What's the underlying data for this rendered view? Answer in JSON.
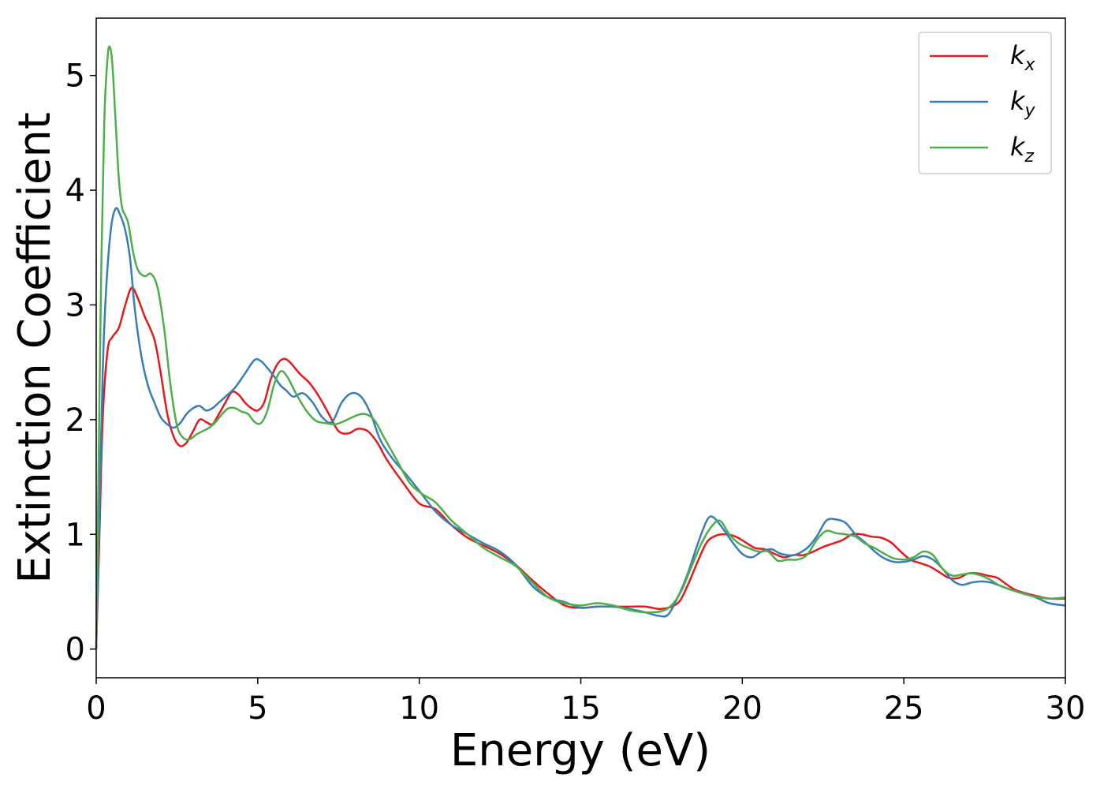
{
  "chart_data": {
    "type": "line",
    "title": "",
    "xlabel": "Energy (eV)",
    "ylabel": "Extinction Coefficient",
    "xlim": [
      0,
      30
    ],
    "ylim": [
      -0.25,
      5.5
    ],
    "xticks": [
      0,
      5,
      10,
      15,
      20,
      25,
      30
    ],
    "xtick_labels": [
      "0",
      "5",
      "10",
      "15",
      "20",
      "25",
      "30"
    ],
    "yticks": [
      0,
      1,
      2,
      3,
      4,
      5
    ],
    "ytick_labels": [
      "0",
      "1",
      "2",
      "3",
      "4",
      "5"
    ],
    "grid": false,
    "legend_position": "top-right",
    "series": [
      {
        "name": "k_x",
        "name_main": "k",
        "name_sub": "x",
        "color": "#e41a1c",
        "points": [
          [
            0,
            0
          ],
          [
            0.1,
            1.0
          ],
          [
            0.2,
            2.0
          ],
          [
            0.35,
            2.6
          ],
          [
            0.5,
            2.72
          ],
          [
            0.7,
            2.8
          ],
          [
            0.9,
            3.0
          ],
          [
            1.1,
            3.15
          ],
          [
            1.3,
            3.05
          ],
          [
            1.5,
            2.9
          ],
          [
            1.8,
            2.7
          ],
          [
            2.0,
            2.4
          ],
          [
            2.2,
            2.05
          ],
          [
            2.4,
            1.85
          ],
          [
            2.6,
            1.77
          ],
          [
            2.8,
            1.8
          ],
          [
            3.0,
            1.9
          ],
          [
            3.2,
            2.0
          ],
          [
            3.4,
            1.98
          ],
          [
            3.6,
            1.96
          ],
          [
            3.8,
            2.05
          ],
          [
            4.0,
            2.15
          ],
          [
            4.2,
            2.24
          ],
          [
            4.4,
            2.22
          ],
          [
            4.6,
            2.15
          ],
          [
            4.8,
            2.1
          ],
          [
            5.0,
            2.08
          ],
          [
            5.2,
            2.15
          ],
          [
            5.4,
            2.35
          ],
          [
            5.6,
            2.48
          ],
          [
            5.8,
            2.53
          ],
          [
            6.0,
            2.5
          ],
          [
            6.3,
            2.4
          ],
          [
            6.6,
            2.32
          ],
          [
            6.9,
            2.2
          ],
          [
            7.2,
            2.05
          ],
          [
            7.5,
            1.9
          ],
          [
            7.8,
            1.88
          ],
          [
            8.1,
            1.92
          ],
          [
            8.4,
            1.9
          ],
          [
            8.7,
            1.8
          ],
          [
            9.0,
            1.65
          ],
          [
            9.5,
            1.45
          ],
          [
            10.0,
            1.27
          ],
          [
            10.5,
            1.22
          ],
          [
            11.0,
            1.08
          ],
          [
            11.5,
            0.97
          ],
          [
            12.0,
            0.9
          ],
          [
            12.5,
            0.83
          ],
          [
            13.0,
            0.73
          ],
          [
            13.5,
            0.6
          ],
          [
            14.0,
            0.48
          ],
          [
            14.5,
            0.38
          ],
          [
            15.0,
            0.36
          ],
          [
            15.5,
            0.37
          ],
          [
            16.0,
            0.37
          ],
          [
            16.5,
            0.37
          ],
          [
            17.0,
            0.37
          ],
          [
            17.5,
            0.35
          ],
          [
            18.0,
            0.4
          ],
          [
            18.3,
            0.55
          ],
          [
            18.6,
            0.75
          ],
          [
            18.9,
            0.93
          ],
          [
            19.2,
            0.99
          ],
          [
            19.5,
            1.0
          ],
          [
            19.8,
            0.98
          ],
          [
            20.1,
            0.93
          ],
          [
            20.4,
            0.88
          ],
          [
            20.7,
            0.87
          ],
          [
            21.0,
            0.83
          ],
          [
            21.3,
            0.8
          ],
          [
            21.6,
            0.82
          ],
          [
            21.9,
            0.82
          ],
          [
            22.2,
            0.85
          ],
          [
            22.5,
            0.89
          ],
          [
            22.8,
            0.92
          ],
          [
            23.1,
            0.95
          ],
          [
            23.4,
            1.0
          ],
          [
            23.7,
            1.0
          ],
          [
            24.0,
            0.98
          ],
          [
            24.3,
            0.97
          ],
          [
            24.6,
            0.93
          ],
          [
            24.9,
            0.85
          ],
          [
            25.2,
            0.78
          ],
          [
            25.5,
            0.75
          ],
          [
            25.8,
            0.72
          ],
          [
            26.1,
            0.67
          ],
          [
            26.4,
            0.62
          ],
          [
            26.7,
            0.62
          ],
          [
            27.0,
            0.66
          ],
          [
            27.3,
            0.66
          ],
          [
            27.6,
            0.64
          ],
          [
            27.9,
            0.62
          ],
          [
            28.2,
            0.56
          ],
          [
            28.5,
            0.51
          ],
          [
            29.0,
            0.47
          ],
          [
            29.5,
            0.44
          ],
          [
            30.0,
            0.44
          ]
        ]
      },
      {
        "name": "k_y",
        "name_main": "k",
        "name_sub": "y",
        "color": "#377eb8",
        "points": [
          [
            0,
            0
          ],
          [
            0.1,
            1.2
          ],
          [
            0.2,
            2.4
          ],
          [
            0.3,
            3.1
          ],
          [
            0.45,
            3.65
          ],
          [
            0.6,
            3.84
          ],
          [
            0.75,
            3.78
          ],
          [
            0.9,
            3.65
          ],
          [
            1.05,
            3.4
          ],
          [
            1.2,
            2.95
          ],
          [
            1.4,
            2.55
          ],
          [
            1.6,
            2.3
          ],
          [
            1.8,
            2.15
          ],
          [
            2.0,
            2.02
          ],
          [
            2.2,
            1.96
          ],
          [
            2.4,
            1.93
          ],
          [
            2.6,
            1.97
          ],
          [
            2.8,
            2.05
          ],
          [
            3.0,
            2.1
          ],
          [
            3.2,
            2.12
          ],
          [
            3.4,
            2.08
          ],
          [
            3.6,
            2.1
          ],
          [
            3.8,
            2.15
          ],
          [
            4.0,
            2.2
          ],
          [
            4.3,
            2.28
          ],
          [
            4.6,
            2.4
          ],
          [
            4.9,
            2.52
          ],
          [
            5.1,
            2.51
          ],
          [
            5.3,
            2.45
          ],
          [
            5.5,
            2.38
          ],
          [
            5.7,
            2.3
          ],
          [
            5.9,
            2.25
          ],
          [
            6.1,
            2.2
          ],
          [
            6.4,
            2.23
          ],
          [
            6.7,
            2.15
          ],
          [
            7.0,
            2.02
          ],
          [
            7.3,
            1.98
          ],
          [
            7.6,
            2.15
          ],
          [
            7.9,
            2.23
          ],
          [
            8.2,
            2.2
          ],
          [
            8.5,
            2.05
          ],
          [
            8.8,
            1.82
          ],
          [
            9.2,
            1.65
          ],
          [
            9.6,
            1.52
          ],
          [
            10.0,
            1.38
          ],
          [
            10.5,
            1.2
          ],
          [
            11.0,
            1.08
          ],
          [
            11.5,
            1.0
          ],
          [
            12.0,
            0.92
          ],
          [
            12.5,
            0.85
          ],
          [
            13.0,
            0.73
          ],
          [
            13.5,
            0.55
          ],
          [
            14.0,
            0.45
          ],
          [
            14.5,
            0.41
          ],
          [
            15.0,
            0.36
          ],
          [
            15.5,
            0.37
          ],
          [
            16.0,
            0.37
          ],
          [
            16.5,
            0.35
          ],
          [
            17.0,
            0.32
          ],
          [
            17.4,
            0.29
          ],
          [
            17.7,
            0.3
          ],
          [
            18.0,
            0.45
          ],
          [
            18.3,
            0.65
          ],
          [
            18.6,
            0.9
          ],
          [
            18.9,
            1.12
          ],
          [
            19.1,
            1.15
          ],
          [
            19.4,
            1.05
          ],
          [
            19.7,
            0.93
          ],
          [
            20.0,
            0.83
          ],
          [
            20.3,
            0.8
          ],
          [
            20.6,
            0.85
          ],
          [
            20.9,
            0.87
          ],
          [
            21.2,
            0.83
          ],
          [
            21.6,
            0.82
          ],
          [
            22.0,
            0.88
          ],
          [
            22.3,
            0.98
          ],
          [
            22.6,
            1.12
          ],
          [
            22.9,
            1.13
          ],
          [
            23.2,
            1.1
          ],
          [
            23.5,
            1.0
          ],
          [
            23.8,
            0.93
          ],
          [
            24.1,
            0.85
          ],
          [
            24.4,
            0.79
          ],
          [
            24.7,
            0.76
          ],
          [
            25.0,
            0.76
          ],
          [
            25.3,
            0.78
          ],
          [
            25.6,
            0.81
          ],
          [
            25.9,
            0.78
          ],
          [
            26.2,
            0.7
          ],
          [
            26.5,
            0.6
          ],
          [
            26.8,
            0.56
          ],
          [
            27.1,
            0.58
          ],
          [
            27.4,
            0.59
          ],
          [
            27.7,
            0.58
          ],
          [
            28.0,
            0.55
          ],
          [
            28.5,
            0.5
          ],
          [
            29.0,
            0.46
          ],
          [
            29.5,
            0.4
          ],
          [
            30.0,
            0.38
          ]
        ]
      },
      {
        "name": "k_z",
        "name_main": "k",
        "name_sub": "z",
        "color": "#4daf4a",
        "points": [
          [
            0,
            0
          ],
          [
            0.07,
            1.5
          ],
          [
            0.15,
            3.2
          ],
          [
            0.25,
            4.6
          ],
          [
            0.35,
            5.15
          ],
          [
            0.42,
            5.25
          ],
          [
            0.5,
            5.1
          ],
          [
            0.6,
            4.6
          ],
          [
            0.7,
            4.1
          ],
          [
            0.8,
            3.85
          ],
          [
            0.9,
            3.78
          ],
          [
            1.0,
            3.7
          ],
          [
            1.15,
            3.45
          ],
          [
            1.3,
            3.3
          ],
          [
            1.5,
            3.25
          ],
          [
            1.7,
            3.27
          ],
          [
            1.9,
            3.15
          ],
          [
            2.1,
            2.8
          ],
          [
            2.3,
            2.3
          ],
          [
            2.5,
            1.95
          ],
          [
            2.7,
            1.84
          ],
          [
            2.9,
            1.83
          ],
          [
            3.1,
            1.87
          ],
          [
            3.3,
            1.9
          ],
          [
            3.5,
            1.93
          ],
          [
            3.7,
            1.98
          ],
          [
            3.9,
            2.05
          ],
          [
            4.1,
            2.1
          ],
          [
            4.3,
            2.1
          ],
          [
            4.5,
            2.07
          ],
          [
            4.7,
            2.05
          ],
          [
            4.9,
            1.98
          ],
          [
            5.1,
            1.97
          ],
          [
            5.3,
            2.08
          ],
          [
            5.5,
            2.3
          ],
          [
            5.7,
            2.42
          ],
          [
            5.9,
            2.38
          ],
          [
            6.2,
            2.22
          ],
          [
            6.5,
            2.08
          ],
          [
            6.8,
            1.99
          ],
          [
            7.1,
            1.97
          ],
          [
            7.4,
            1.96
          ],
          [
            7.7,
            1.99
          ],
          [
            8.0,
            2.03
          ],
          [
            8.3,
            2.05
          ],
          [
            8.6,
            2.0
          ],
          [
            8.9,
            1.85
          ],
          [
            9.3,
            1.65
          ],
          [
            9.7,
            1.45
          ],
          [
            10.1,
            1.35
          ],
          [
            10.5,
            1.28
          ],
          [
            11.0,
            1.12
          ],
          [
            11.5,
            1.0
          ],
          [
            12.0,
            0.88
          ],
          [
            12.5,
            0.8
          ],
          [
            13.0,
            0.72
          ],
          [
            13.5,
            0.58
          ],
          [
            14.0,
            0.45
          ],
          [
            14.5,
            0.4
          ],
          [
            15.0,
            0.38
          ],
          [
            15.5,
            0.4
          ],
          [
            16.0,
            0.38
          ],
          [
            16.5,
            0.34
          ],
          [
            17.0,
            0.32
          ],
          [
            17.5,
            0.33
          ],
          [
            17.8,
            0.38
          ],
          [
            18.1,
            0.5
          ],
          [
            18.4,
            0.7
          ],
          [
            18.7,
            0.9
          ],
          [
            19.0,
            1.05
          ],
          [
            19.3,
            1.12
          ],
          [
            19.6,
            1.0
          ],
          [
            19.9,
            0.92
          ],
          [
            20.2,
            0.88
          ],
          [
            20.5,
            0.85
          ],
          [
            20.8,
            0.85
          ],
          [
            21.1,
            0.77
          ],
          [
            21.4,
            0.78
          ],
          [
            21.7,
            0.78
          ],
          [
            22.0,
            0.82
          ],
          [
            22.3,
            0.95
          ],
          [
            22.6,
            1.03
          ],
          [
            22.9,
            1.01
          ],
          [
            23.2,
            1.0
          ],
          [
            23.5,
            0.98
          ],
          [
            23.8,
            0.92
          ],
          [
            24.1,
            0.88
          ],
          [
            24.4,
            0.83
          ],
          [
            24.7,
            0.79
          ],
          [
            25.0,
            0.78
          ],
          [
            25.3,
            0.8
          ],
          [
            25.6,
            0.85
          ],
          [
            25.9,
            0.82
          ],
          [
            26.2,
            0.7
          ],
          [
            26.5,
            0.64
          ],
          [
            26.8,
            0.65
          ],
          [
            27.1,
            0.66
          ],
          [
            27.4,
            0.64
          ],
          [
            27.7,
            0.6
          ],
          [
            28.0,
            0.55
          ],
          [
            28.5,
            0.5
          ],
          [
            29.0,
            0.46
          ],
          [
            29.5,
            0.44
          ],
          [
            30.0,
            0.45
          ]
        ]
      }
    ]
  }
}
